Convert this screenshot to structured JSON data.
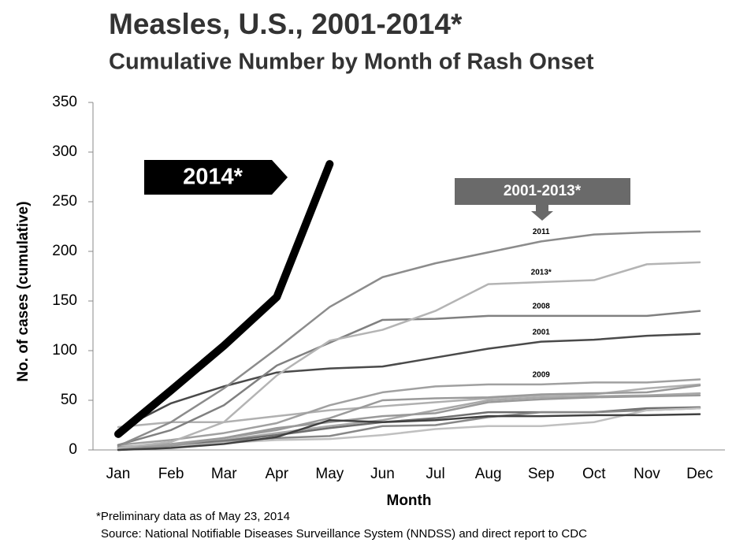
{
  "chart_data": {
    "type": "line",
    "title": "Measles, U.S., 2001-2014*",
    "subtitle": "Cumulative Number by Month of Rash Onset",
    "x_label": "Month",
    "y_label": "No. of cases (cumulative)",
    "categories": [
      "Jan",
      "Feb",
      "Mar",
      "Apr",
      "May",
      "Jun",
      "Jul",
      "Aug",
      "Sep",
      "Oct",
      "Nov",
      "Dec"
    ],
    "ylim": [
      0,
      350
    ],
    "yticks": [
      0,
      50,
      100,
      150,
      200,
      250,
      300,
      350
    ],
    "grid": false,
    "annotation": "2001-2013*",
    "footnote": "*Preliminary data as of May 23, 2014",
    "source": "Source:  National Notifiable Diseases Surveillance System (NNDSS)  and direct report to CDC",
    "series": [
      {
        "color": "#b0b0b0",
        "values": [
          23,
          28,
          28,
          34,
          40,
          44,
          48,
          52,
          55,
          56,
          62,
          66
        ]
      },
      {
        "color": "#9a9a9a",
        "values": [
          3,
          6,
          12,
          20,
          32,
          50,
          52,
          53,
          56,
          57,
          58,
          65
        ]
      },
      {
        "color": "#a8a8a8",
        "values": [
          2,
          5,
          10,
          17,
          24,
          30,
          40,
          50,
          53,
          54,
          55,
          57
        ]
      },
      {
        "color": "#6e6e6e",
        "values": [
          1,
          4,
          9,
          15,
          22,
          28,
          32,
          38,
          38,
          38,
          42,
          43
        ]
      },
      {
        "color": "#888888",
        "values": [
          0,
          3,
          8,
          12,
          14,
          24,
          25,
          33,
          38,
          38,
          40,
          42
        ]
      },
      {
        "color": "#c0c0c0",
        "values": [
          1,
          3,
          7,
          10,
          11,
          15,
          21,
          24,
          24,
          28,
          40,
          42
        ]
      },
      {
        "color": "#999999",
        "values": [
          2,
          4,
          12,
          22,
          28,
          34,
          37,
          48,
          51,
          53,
          54,
          55
        ]
      },
      {
        "color": "#404040",
        "values": [
          0,
          2,
          6,
          13,
          30,
          28,
          30,
          34,
          34,
          35,
          35,
          36
        ]
      },
      {
        "name": "2009",
        "color": "#a0a0a0",
        "values": [
          5,
          10,
          17,
          27,
          45,
          58,
          64,
          66,
          66,
          68,
          68,
          71
        ]
      },
      {
        "name": "2001",
        "color": "#4a4a4a",
        "values": [
          20,
          47,
          64,
          78,
          82,
          84,
          93,
          102,
          109,
          111,
          115,
          117
        ]
      },
      {
        "name": "2008",
        "color": "#808080",
        "values": [
          5,
          20,
          45,
          85,
          108,
          131,
          132,
          135,
          135,
          135,
          135,
          140
        ]
      },
      {
        "name": "2013*",
        "color": "#b4b4b4",
        "values": [
          2,
          8,
          28,
          75,
          110,
          121,
          140,
          167,
          169,
          171,
          187,
          189
        ]
      },
      {
        "name": "2011",
        "color": "#8c8c8c",
        "values": [
          4,
          28,
          62,
          102,
          144,
          174,
          188,
          199,
          210,
          217,
          219,
          220
        ]
      },
      {
        "name": "2014*",
        "color": "#000000",
        "values": [
          16,
          60,
          105,
          154,
          288,
          null,
          null,
          null,
          null,
          null,
          null,
          null
        ]
      }
    ]
  }
}
